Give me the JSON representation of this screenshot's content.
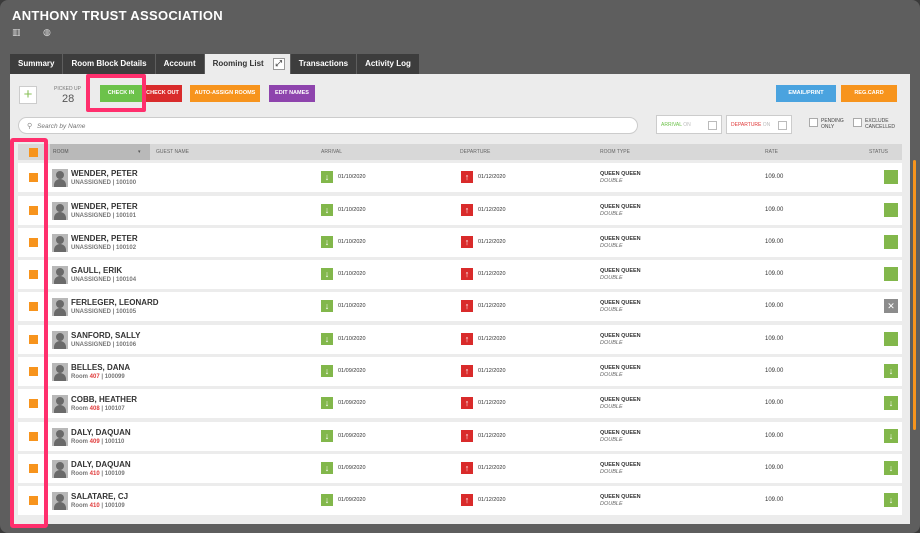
{
  "app": {
    "title": "ANTHONY TRUST ASSOCIATION"
  },
  "tabs": [
    {
      "label": "Summary"
    },
    {
      "label": "Room Block Details"
    },
    {
      "label": "Account"
    },
    {
      "label": "Rooming List"
    },
    {
      "label": "Transactions"
    },
    {
      "label": "Activity Log"
    }
  ],
  "toolbar": {
    "add_label": "+",
    "picked_up_label": "PICKED UP",
    "picked_up_value": "28",
    "check_in": "CHECK IN",
    "check_out": "CHECK OUT",
    "auto_assign": "AUTO-ASSIGN ROOMS",
    "edit_names": "EDIT NAMES",
    "email_print": "EMAIL/PRINT",
    "reg_card": "REG.CARD",
    "check_in_color": "#6cc24a",
    "check_out_color": "#d92b2b",
    "auto_assign_color": "#f7941d",
    "edit_names_color": "#8e44ad",
    "email_print_color": "#4aa3df",
    "reg_card_color": "#f7941d"
  },
  "filters": {
    "search_placeholder": "Search by Name",
    "arrival_label": "ARRIVAL",
    "arrival_suffix": "ON",
    "departure_label": "DEPARTURE",
    "departure_suffix": "ON",
    "pending_only": "PENDING ONLY",
    "exclude_cancelled": "EXCLUDE CANCELLED"
  },
  "columns": {
    "room": "ROOM",
    "guest_name": "GUEST NAME",
    "arrival": "ARRIVAL",
    "departure": "DEPARTURE",
    "room_type": "ROOM TYPE",
    "rate": "RATE",
    "status": "STATUS"
  },
  "rows": [
    {
      "name": "WENDER, PETER",
      "room_prefix": "UNASSIGNED",
      "room_no": "",
      "conf": "100100",
      "arrival": "01/10/2020",
      "departure": "01/12/2020",
      "type": "QUEEN QUEEN",
      "type_sub": "DOUBLE",
      "rate": "109.00",
      "status": "ok"
    },
    {
      "name": "WENDER, PETER",
      "room_prefix": "UNASSIGNED",
      "room_no": "",
      "conf": "100101",
      "arrival": "01/10/2020",
      "departure": "01/12/2020",
      "type": "QUEEN QUEEN",
      "type_sub": "DOUBLE",
      "rate": "109.00",
      "status": "ok"
    },
    {
      "name": "WENDER, PETER",
      "room_prefix": "UNASSIGNED",
      "room_no": "",
      "conf": "100102",
      "arrival": "01/10/2020",
      "departure": "01/12/2020",
      "type": "QUEEN QUEEN",
      "type_sub": "DOUBLE",
      "rate": "109.00",
      "status": "ok"
    },
    {
      "name": "GAULL, ERIK",
      "room_prefix": "UNASSIGNED",
      "room_no": "",
      "conf": "100104",
      "arrival": "01/10/2020",
      "departure": "01/12/2020",
      "type": "QUEEN QUEEN",
      "type_sub": "DOUBLE",
      "rate": "109.00",
      "status": "ok"
    },
    {
      "name": "FERLEGER, LEONARD",
      "room_prefix": "UNASSIGNED",
      "room_no": "",
      "conf": "100105",
      "arrival": "01/10/2020",
      "departure": "01/12/2020",
      "type": "QUEEN QUEEN",
      "type_sub": "DOUBLE",
      "rate": "109.00",
      "status": "x"
    },
    {
      "name": "SANFORD, SALLY",
      "room_prefix": "UNASSIGNED",
      "room_no": "",
      "conf": "100106",
      "arrival": "01/10/2020",
      "departure": "01/12/2020",
      "type": "QUEEN QUEEN",
      "type_sub": "DOUBLE",
      "rate": "109.00",
      "status": "ok"
    },
    {
      "name": "BELLES, DANA",
      "room_prefix": "Room",
      "room_no": "407",
      "conf": "100099",
      "arrival": "01/09/2020",
      "departure": "01/12/2020",
      "type": "QUEEN QUEEN",
      "type_sub": "DOUBLE",
      "rate": "109.00",
      "status": "arr"
    },
    {
      "name": "COBB, HEATHER",
      "room_prefix": "Room",
      "room_no": "408",
      "conf": "100107",
      "arrival": "01/09/2020",
      "departure": "01/12/2020",
      "type": "QUEEN QUEEN",
      "type_sub": "DOUBLE",
      "rate": "109.00",
      "status": "arr"
    },
    {
      "name": "DALY, DAQUAN",
      "room_prefix": "Room",
      "room_no": "409",
      "conf": "100110",
      "arrival": "01/09/2020",
      "departure": "01/12/2020",
      "type": "QUEEN QUEEN",
      "type_sub": "DOUBLE",
      "rate": "109.00",
      "status": "arr"
    },
    {
      "name": "DALY, DAQUAN",
      "room_prefix": "Room",
      "room_no": "410",
      "conf": "100109",
      "arrival": "01/09/2020",
      "departure": "01/12/2020",
      "type": "QUEEN QUEEN",
      "type_sub": "DOUBLE",
      "rate": "109.00",
      "status": "arr"
    },
    {
      "name": "SALATARE, CJ",
      "room_prefix": "Room",
      "room_no": "410",
      "conf": "100109",
      "arrival": "01/09/2020",
      "departure": "01/12/2020",
      "type": "QUEEN QUEEN",
      "type_sub": "DOUBLE",
      "rate": "109.00",
      "status": "arr"
    }
  ],
  "icons": {
    "down_arrow": "↓",
    "up_arrow": "↑",
    "close": "✕"
  }
}
